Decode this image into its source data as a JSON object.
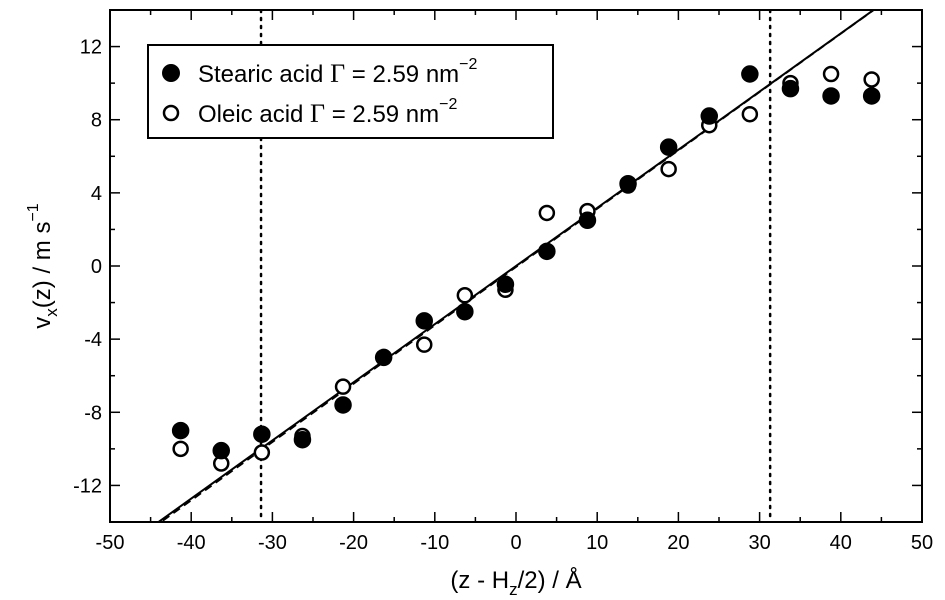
{
  "chart_data": {
    "type": "scatter",
    "xlabel": {
      "prefix": "(z - H",
      "sub": "z",
      "suffix": "/2) / Å"
    },
    "ylabel": {
      "prefix": "v",
      "sub": "x",
      "middle": "(z) / m s",
      "sup": "−1"
    },
    "xlim": [
      -50,
      50
    ],
    "ylim": [
      -14,
      14
    ],
    "xticks": [
      "-50",
      "-40",
      "-30",
      "-20",
      "-10",
      "0",
      "10",
      "20",
      "30",
      "40",
      "50"
    ],
    "yticks": [
      "-12",
      "-8",
      "-4",
      "0",
      "4",
      "8",
      "12"
    ],
    "xtick_values": [
      -50,
      -40,
      -30,
      -20,
      -10,
      0,
      10,
      20,
      30,
      40,
      50
    ],
    "ytick_values": [
      -12,
      -8,
      -4,
      0,
      4,
      8,
      12
    ],
    "grid": false,
    "legend_position": "top-left",
    "vertical_reference_lines": [
      -31.4,
      31.3
    ],
    "fit_lines": [
      {
        "style": "solid",
        "slope": 0.318,
        "intercept": 0.0
      },
      {
        "style": "dashed",
        "slope": 0.319,
        "intercept": -0.05
      }
    ],
    "series": [
      {
        "marker": "filled-circle",
        "legend": {
          "label": "Stearic acid ",
          "gamma": "Γ",
          "rest": " = 2.59 nm",
          "sup": "−2"
        },
        "points": [
          [
            -41.3,
            -9.0
          ],
          [
            -36.3,
            -10.1
          ],
          [
            -31.3,
            -9.2
          ],
          [
            -26.3,
            -9.5
          ],
          [
            -21.3,
            -7.6
          ],
          [
            -16.3,
            -5.0
          ],
          [
            -11.3,
            -3.0
          ],
          [
            -6.3,
            -2.5
          ],
          [
            -1.3,
            -1.0
          ],
          [
            3.8,
            0.8
          ],
          [
            8.8,
            2.5
          ],
          [
            13.8,
            4.5
          ],
          [
            18.8,
            6.5
          ],
          [
            23.8,
            8.2
          ],
          [
            28.8,
            10.5
          ],
          [
            33.8,
            9.7
          ],
          [
            38.8,
            9.3
          ],
          [
            43.8,
            9.3
          ]
        ]
      },
      {
        "marker": "open-circle",
        "legend": {
          "label": "Oleic acid ",
          "gamma": "Γ",
          "rest": " = 2.59 nm",
          "sup": "−2"
        },
        "points": [
          [
            -41.3,
            -10.0
          ],
          [
            -36.3,
            -10.8
          ],
          [
            -31.3,
            -10.2
          ],
          [
            -26.3,
            -9.3
          ],
          [
            -21.3,
            -6.6
          ],
          [
            -16.3,
            -5.0
          ],
          [
            -11.3,
            -4.3
          ],
          [
            -6.3,
            -1.6
          ],
          [
            -1.3,
            -1.3
          ],
          [
            3.8,
            2.9
          ],
          [
            8.8,
            3.0
          ],
          [
            13.8,
            4.4
          ],
          [
            18.8,
            5.3
          ],
          [
            23.8,
            7.7
          ],
          [
            28.8,
            8.3
          ],
          [
            33.8,
            10.0
          ],
          [
            38.8,
            10.5
          ],
          [
            43.8,
            10.2
          ]
        ]
      }
    ]
  }
}
